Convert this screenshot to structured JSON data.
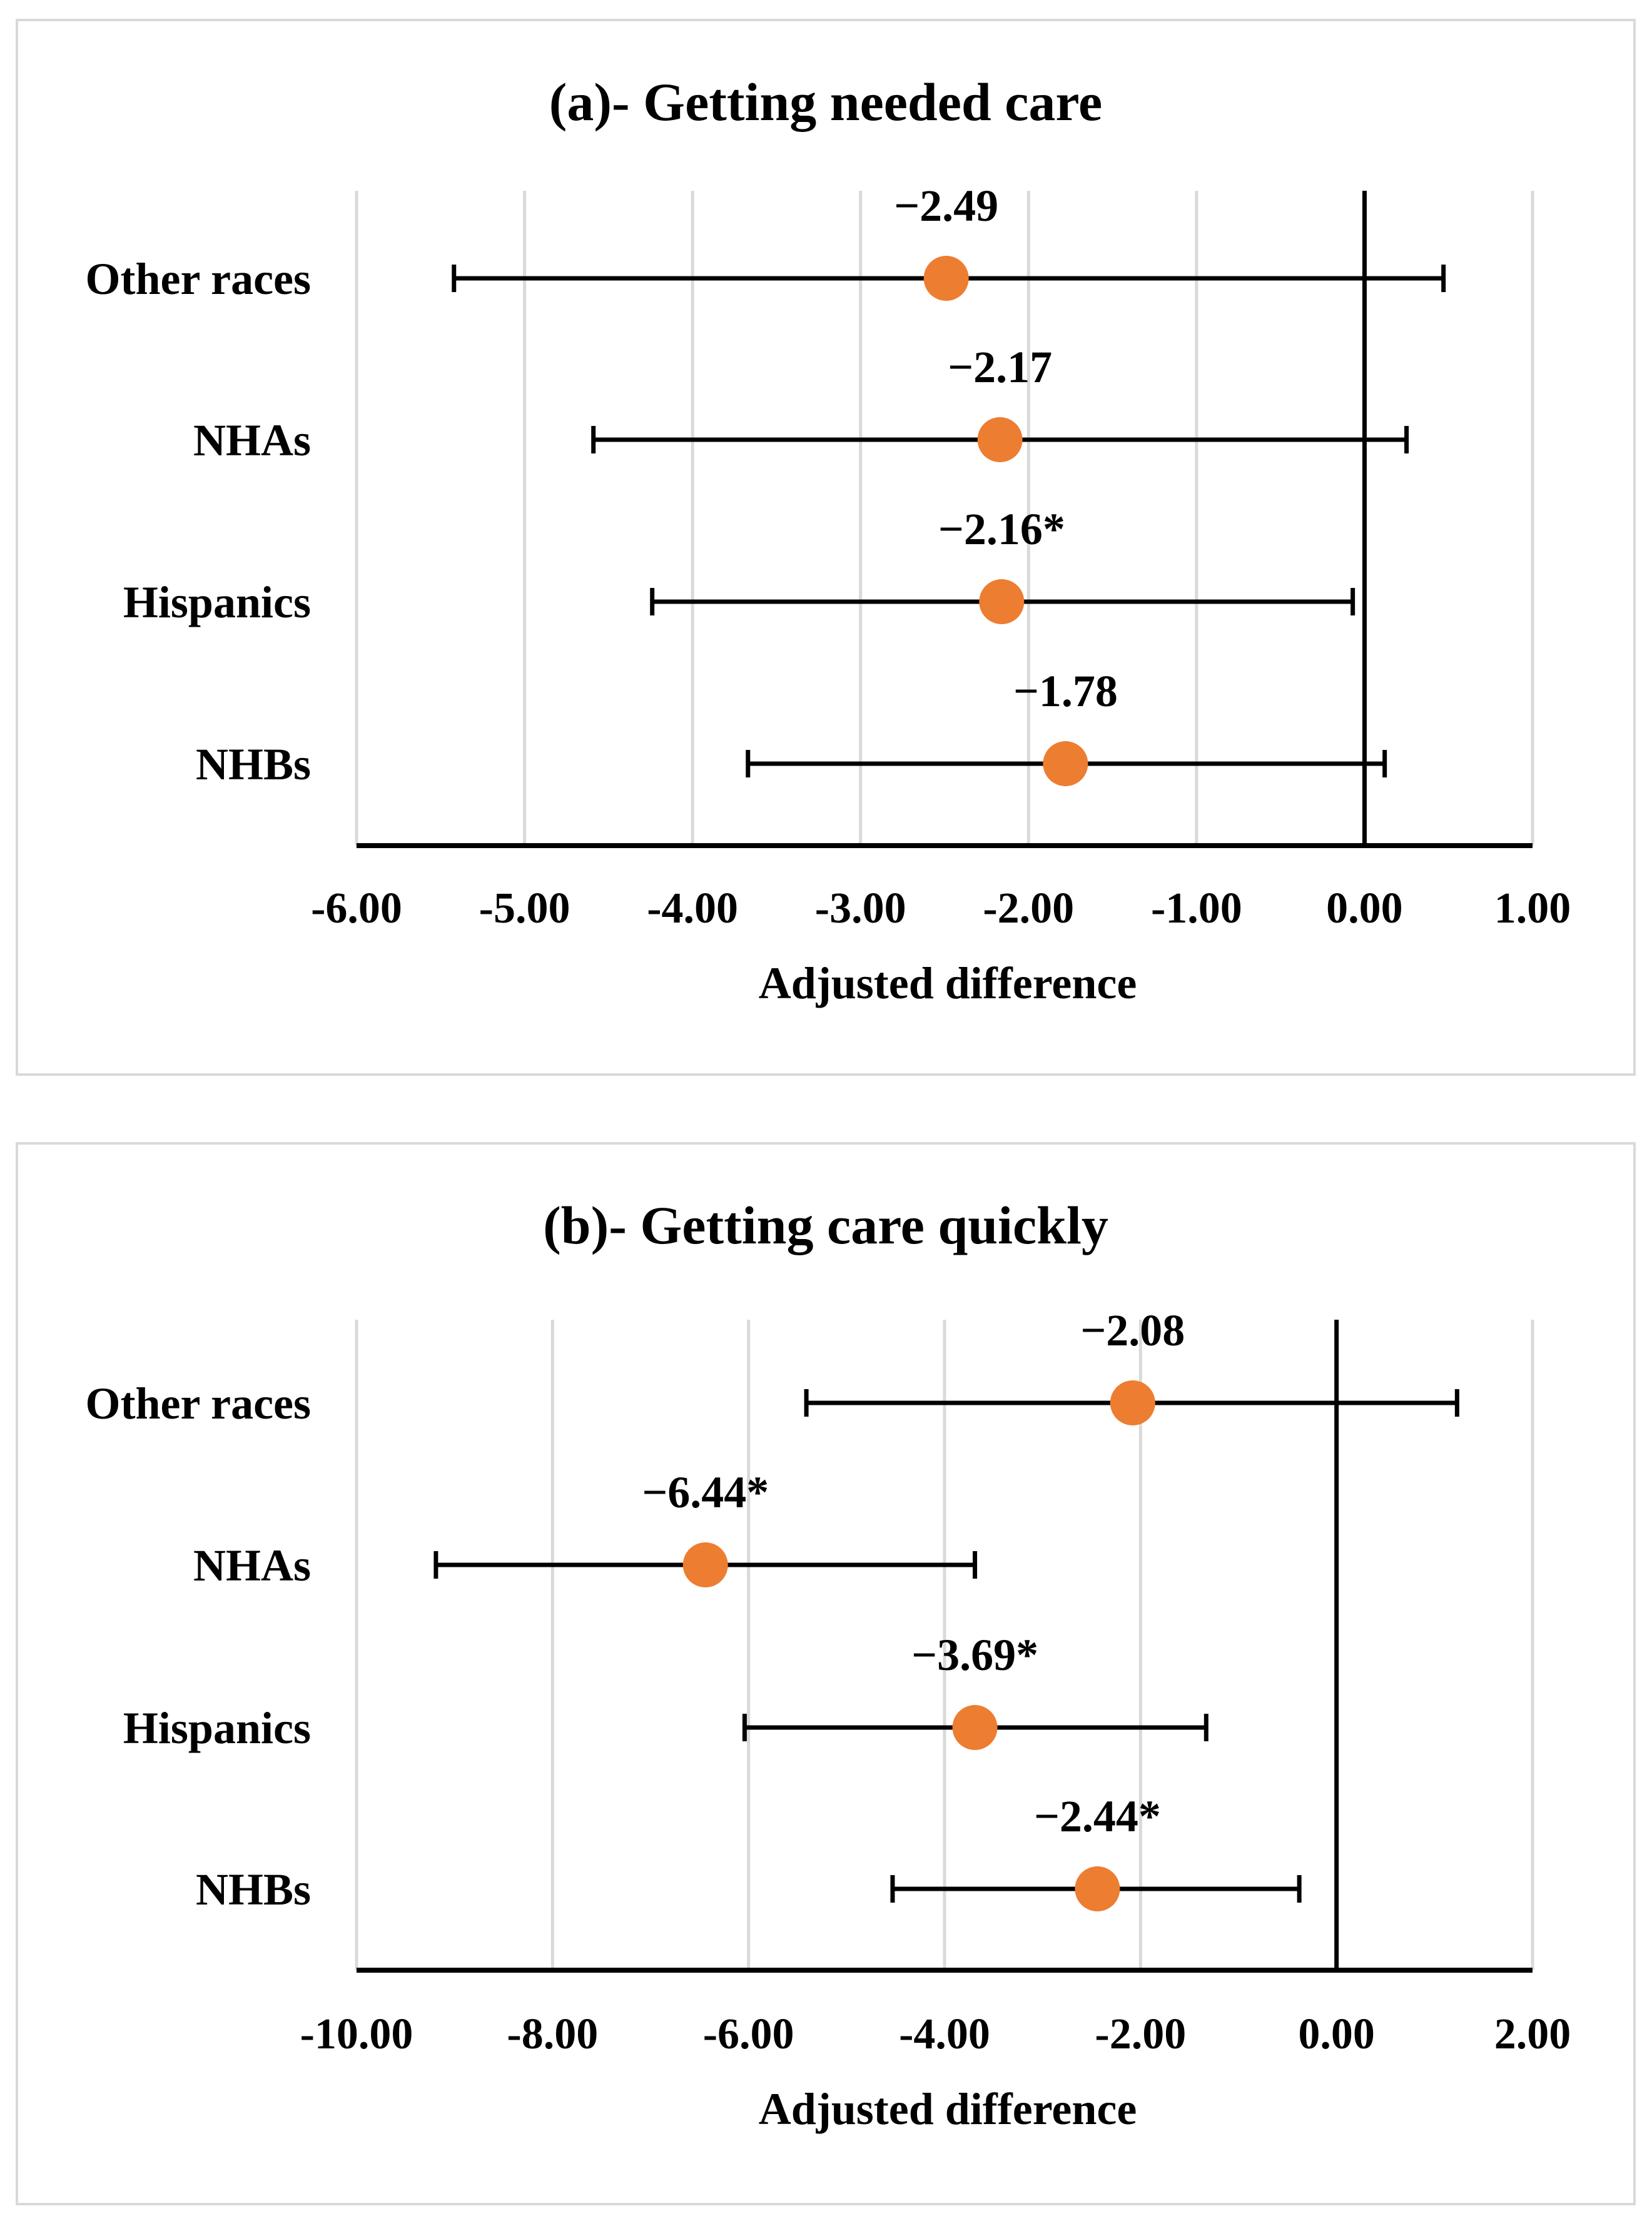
{
  "chart_data": [
    {
      "type": "scatter",
      "subtype": "forest-plot",
      "title": "(a)- Getting needed care",
      "xlabel": "Adjusted difference",
      "ylabel": "",
      "xlim": [
        -6.0,
        1.0
      ],
      "xticks": [
        -6,
        -5,
        -4,
        -3,
        -2,
        -1,
        0,
        1
      ],
      "xtick_labels": [
        "-6.00",
        "-5.00",
        "-4.00",
        "-3.00",
        "-2.00",
        "-1.00",
        "0.00",
        "1.00"
      ],
      "categories": [
        "Other races",
        "NHAs",
        "Hispanics",
        "NHBs"
      ],
      "values": [
        -2.49,
        -2.17,
        -2.16,
        -1.78
      ],
      "ci_low": [
        -5.42,
        -4.59,
        -4.24,
        -3.67
      ],
      "ci_high": [
        0.47,
        0.25,
        -0.07,
        0.12
      ],
      "data_labels": [
        "−2.49",
        "−2.17",
        "−2.16*",
        "−1.78"
      ],
      "grid": true,
      "marker_color": "#ed7d31"
    },
    {
      "type": "scatter",
      "subtype": "forest-plot",
      "title": "(b)- Getting care quickly",
      "xlabel": "Adjusted difference",
      "ylabel": "",
      "xlim": [
        -10.0,
        2.0
      ],
      "xticks": [
        -10,
        -8,
        -6,
        -4,
        -2,
        0,
        2
      ],
      "xtick_labels": [
        "-10.00",
        "-8.00",
        "-6.00",
        "-4.00",
        "-2.00",
        "0.00",
        "2.00"
      ],
      "categories": [
        "Other races",
        "NHAs",
        "Hispanics",
        "NHBs"
      ],
      "values": [
        -2.08,
        -6.44,
        -3.69,
        -2.44
      ],
      "ci_low": [
        -5.41,
        -9.19,
        -6.04,
        -4.53
      ],
      "ci_high": [
        1.23,
        -3.69,
        -1.33,
        -0.38
      ],
      "data_labels": [
        "−2.08",
        "−6.44*",
        "−3.69*",
        "−2.44*"
      ],
      "grid": true,
      "marker_color": "#ed7d31"
    }
  ]
}
